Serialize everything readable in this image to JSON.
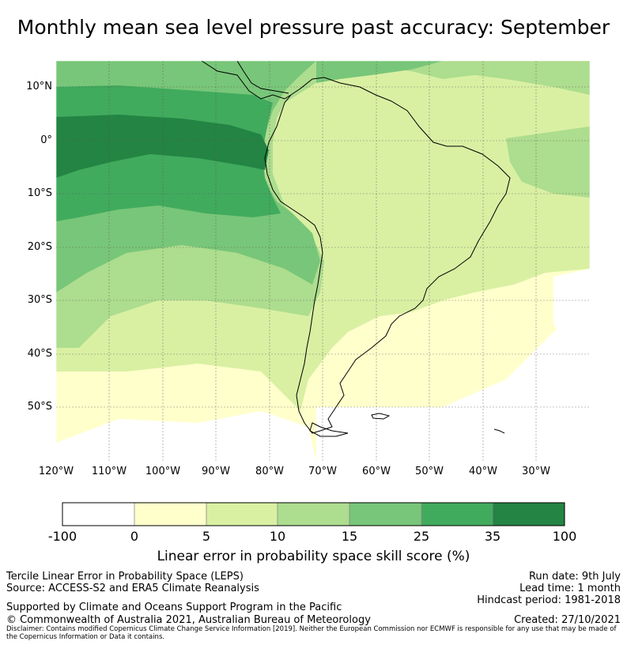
{
  "title": "Monthly mean sea level pressure past accuracy: September",
  "map": {
    "lat_labels": [
      "10°N",
      "0°",
      "10°S",
      "20°S",
      "30°S",
      "40°S",
      "50°S"
    ],
    "lon_labels": [
      "120°W",
      "110°W",
      "100°W",
      "90°W",
      "80°W",
      "70°W",
      "60°W",
      "50°W",
      "40°W",
      "30°W"
    ],
    "extent": {
      "lon": [
        -120,
        -20
      ],
      "lat": [
        -60,
        15
      ]
    }
  },
  "colorbar": {
    "tick_labels": [
      "-100",
      "0",
      "5",
      "10",
      "15",
      "25",
      "35",
      "100"
    ],
    "colors": [
      "#ffffff",
      "#ffffcc",
      "#d9f0a3",
      "#addd8e",
      "#78c679",
      "#41ab5d",
      "#238443"
    ],
    "label": "Linear error in probability space skill score (%)"
  },
  "footer": {
    "left_line1": "Tercile Linear Error in Probability Space (LEPS)",
    "left_line2": "Source: ACCESS-S2 and ERA5 Climate Reanalysis",
    "support": "Supported by Climate and Oceans Support Program in the Pacific",
    "copyright": "© Commonwealth of Australia 2021, Australian Bureau of Meteorology",
    "run_date": "Run date: 9th July",
    "lead_time": "Lead time: 1 month",
    "hindcast": "Hindcast period: 1981-2018",
    "created": "Created: 27/10/2021",
    "disclaimer": "Disclaimer: Contains modified Copernicus Climate Change Service Information [2019]. Neither the European Commission nor ECMWF is responsible for any use that may be made of the Copernicus Information or Data it contains."
  }
}
